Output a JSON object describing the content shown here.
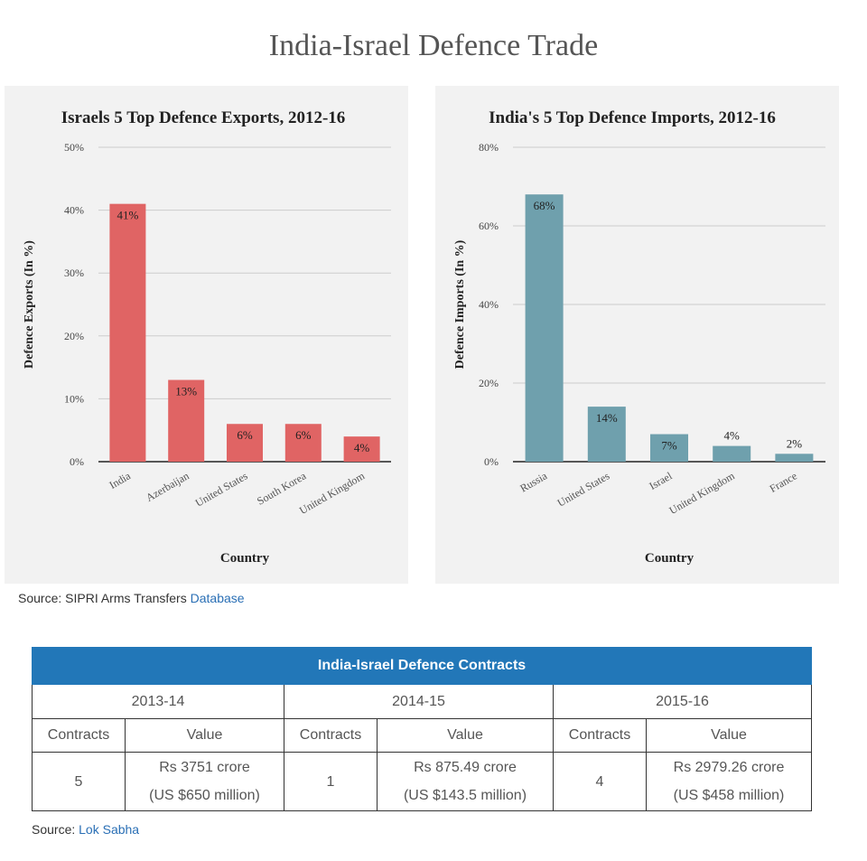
{
  "page_title": "India-Israel Defence Trade",
  "chart_data": [
    {
      "type": "bar",
      "title": "Israels 5 Top Defence Exports, 2012-16",
      "xlabel": "Country",
      "ylabel": "Defence Exports (In %)",
      "categories": [
        "India",
        "Azerbaijan",
        "United States",
        "South Korea",
        "United Kingdom"
      ],
      "values": [
        41,
        13,
        6,
        6,
        4
      ],
      "data_labels": [
        "41%",
        "13%",
        "6%",
        "6%",
        "4%"
      ],
      "yticks": [
        "0%",
        "10%",
        "20%",
        "30%",
        "40%",
        "50%"
      ],
      "ylim": [
        0,
        50
      ],
      "grid": true,
      "bar_color": "#e06464"
    },
    {
      "type": "bar",
      "title": "India's 5 Top Defence Imports, 2012-16",
      "xlabel": "Country",
      "ylabel": "Defence Imports (In %)",
      "categories": [
        "Russia",
        "United States",
        "Israel",
        "United Kingdom",
        "France"
      ],
      "values": [
        68,
        14,
        7,
        4,
        2
      ],
      "data_labels": [
        "68%",
        "14%",
        "7%",
        "4%",
        "2%"
      ],
      "yticks": [
        "0%",
        "20%",
        "40%",
        "60%",
        "80%"
      ],
      "ylim": [
        0,
        80
      ],
      "grid": true,
      "bar_color": "#6fa0ad"
    }
  ],
  "chart_source": {
    "prefix": "Source: SIPRI Arms Transfers",
    "link": "Database"
  },
  "contracts_table": {
    "caption": "India-Israel Defence Contracts",
    "years": [
      "2013-14",
      "2014-15",
      "2015-16"
    ],
    "col_contracts": "Contracts",
    "col_value": "Value",
    "rows": [
      {
        "contracts": "5",
        "value_rs": "Rs 3751 crore",
        "value_us": "(US $650 million)"
      },
      {
        "contracts": "1",
        "value_rs": "Rs 875.49 crore",
        "value_us": "(US $143.5 million)"
      },
      {
        "contracts": "4",
        "value_rs": "Rs 2979.26 crore",
        "value_us": "(US $458 million)"
      }
    ]
  },
  "table_source": {
    "prefix": "Source:",
    "link": "Lok Sabha"
  }
}
